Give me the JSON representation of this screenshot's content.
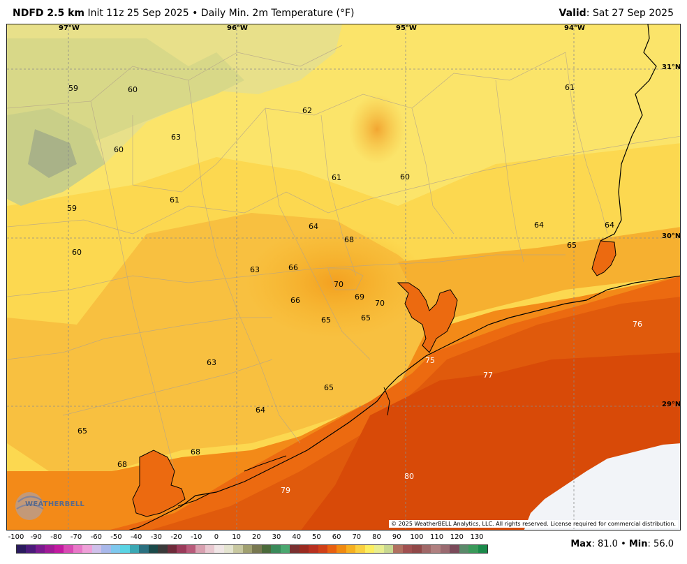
{
  "header": {
    "model": "NDFD 2.5 km",
    "init": "Init 11z 25 Sep 2025",
    "separator": "•",
    "product": "Daily Min. 2m Temperature (°F)",
    "valid_label": "Valid",
    "valid_value": "Sat 27 Sep 2025"
  },
  "coords": {
    "lon_97": "97°W",
    "lon_96": "96°W",
    "lon_95": "95°W",
    "lon_94": "94°W",
    "lat_31": "31°N",
    "lat_30": "30°N",
    "lat_29": "29°N"
  },
  "labels": [
    {
      "id": "l1",
      "text": "59"
    },
    {
      "id": "l2",
      "text": "60"
    },
    {
      "id": "l3",
      "text": "62"
    },
    {
      "id": "l4",
      "text": "61"
    },
    {
      "id": "l5",
      "text": "63"
    },
    {
      "id": "l6",
      "text": "60"
    },
    {
      "id": "l7",
      "text": "61"
    },
    {
      "id": "l8",
      "text": "60"
    },
    {
      "id": "l9",
      "text": "61"
    },
    {
      "id": "l10",
      "text": "59"
    },
    {
      "id": "l11",
      "text": "64"
    },
    {
      "id": "l12",
      "text": "68"
    },
    {
      "id": "l13",
      "text": "64"
    },
    {
      "id": "l14",
      "text": "64"
    },
    {
      "id": "l15",
      "text": "65"
    },
    {
      "id": "l16",
      "text": "60"
    },
    {
      "id": "l17",
      "text": "63"
    },
    {
      "id": "l18",
      "text": "66"
    },
    {
      "id": "l19",
      "text": "70"
    },
    {
      "id": "l20",
      "text": "69"
    },
    {
      "id": "l21",
      "text": "70"
    },
    {
      "id": "l22",
      "text": "66"
    },
    {
      "id": "l23",
      "text": "65"
    },
    {
      "id": "l24",
      "text": "65"
    },
    {
      "id": "l25",
      "text": "76"
    },
    {
      "id": "l26",
      "text": "75"
    },
    {
      "id": "l27",
      "text": "63"
    },
    {
      "id": "l28",
      "text": "77"
    },
    {
      "id": "l29",
      "text": "65"
    },
    {
      "id": "l30",
      "text": "64"
    },
    {
      "id": "l31",
      "text": "65"
    },
    {
      "id": "l32",
      "text": "68"
    },
    {
      "id": "l33",
      "text": "68"
    },
    {
      "id": "l34",
      "text": "80"
    },
    {
      "id": "l35",
      "text": "79"
    }
  ],
  "copyright": "© 2025 WeatherBELL Analytics, LLC. All rights reserved. License required for commercial distribution.",
  "logo": "WEATHERBELL",
  "scale": {
    "ticks": [
      "-100",
      "-90",
      "-80",
      "-70",
      "-60",
      "-50",
      "-40",
      "-30",
      "-20",
      "-10",
      "0",
      "10",
      "20",
      "30",
      "40",
      "50",
      "60",
      "70",
      "80",
      "90",
      "100",
      "110",
      "120",
      "130"
    ],
    "colors": [
      "#2a1a5e",
      "#4b1a7a",
      "#7a1a8e",
      "#a01a96",
      "#c21aa0",
      "#d84ab4",
      "#e878c8",
      "#eea0d8",
      "#cfc0ea",
      "#a8b8ea",
      "#7ec8ee",
      "#5ad4e4",
      "#3aa8b4",
      "#2a7080",
      "#1a4a4a",
      "#3a3a3a",
      "#6e2a3a",
      "#9a3a5a",
      "#b85a7a",
      "#d8a0b0",
      "#e8c8d0",
      "#f0e6e6",
      "#e4e4d0",
      "#c8c8a0",
      "#a0a070",
      "#787850",
      "#4a6a3a",
      "#3a8a5a",
      "#4aa870",
      "#7a3030",
      "#9a2a20",
      "#b83020",
      "#d04018",
      "#e86010",
      "#f08a10",
      "#f6b020",
      "#fad040",
      "#fcee60",
      "#e8ee90",
      "#c8d890",
      "#b07060",
      "#a05050",
      "#904848",
      "#a06868",
      "#b08080",
      "#9a6a70",
      "#7a4a5a",
      "#5a8a6a",
      "#3a9a5a",
      "#1a8a4a"
    ]
  },
  "maxmin": {
    "max_label": "Max",
    "max_value": "81.0",
    "sep": "•",
    "min_label": "Min",
    "min_value": "56.0"
  }
}
